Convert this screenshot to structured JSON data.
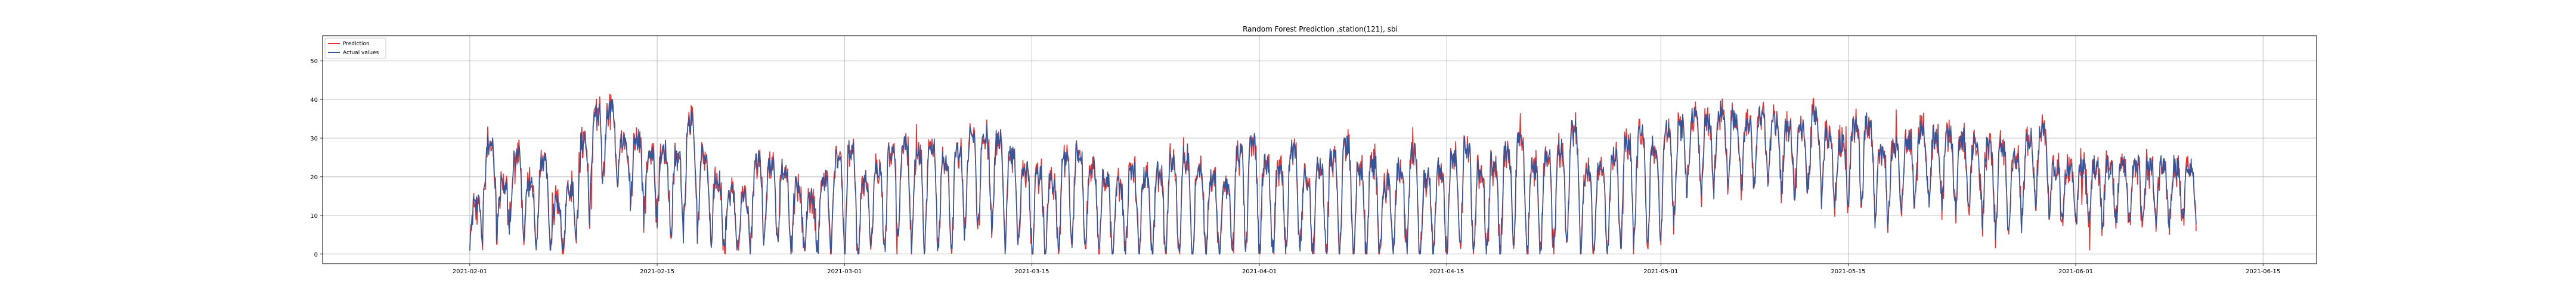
{
  "chart_data": {
    "type": "line",
    "title": "Random Forest Prediction ,station(121), sbi",
    "xlabel": "",
    "ylabel": "",
    "x_start": "2021-02-01",
    "x_end": "2021-06-10",
    "xlim": [
      "2021-01-21",
      "2021-06-19"
    ],
    "ylim": [
      -2.5,
      56.5
    ],
    "x_ticks": [
      "2021-02-01",
      "2021-02-15",
      "2021-03-01",
      "2021-03-15",
      "2021-04-01",
      "2021-04-15",
      "2021-05-01",
      "2021-05-15",
      "2021-06-01",
      "2021-06-15"
    ],
    "y_ticks": [
      0,
      10,
      20,
      30,
      40,
      50
    ],
    "grid": true,
    "legend_position": "top-left",
    "series": [
      {
        "name": "Prediction",
        "color": "#e8312f",
        "daily_mean": [
          10,
          24,
          14,
          20,
          13,
          18,
          9,
          12,
          22,
          30,
          33,
          26,
          24,
          20,
          21,
          18,
          27,
          20,
          14,
          11,
          10,
          18,
          16,
          15,
          12,
          10,
          14,
          17,
          18,
          13,
          16,
          19,
          21,
          18,
          20,
          17,
          19,
          22,
          24,
          21,
          18,
          16,
          14,
          13,
          17,
          19,
          16,
          14,
          12,
          15,
          13,
          14,
          16,
          17,
          15,
          13,
          12,
          18,
          20,
          16,
          14,
          19,
          13,
          15,
          17,
          20,
          14,
          16,
          12,
          15,
          18,
          13,
          15,
          17,
          19,
          14,
          16,
          18,
          21,
          15,
          17,
          19,
          23,
          14,
          16,
          18,
          21,
          22,
          20,
          24,
          26,
          30,
          28,
          32,
          30,
          28,
          31,
          29,
          27,
          26,
          30,
          25,
          24,
          27,
          28,
          20,
          22,
          24,
          26,
          25,
          25,
          24,
          23,
          21,
          20,
          19,
          24,
          26,
          18
        ],
        "daily_amp": [
          6,
          8,
          7,
          9,
          8,
          10,
          6,
          8,
          12,
          10,
          8,
          7,
          9,
          9,
          10,
          12,
          14,
          12,
          10,
          8,
          8,
          12,
          10,
          11,
          9,
          8,
          10,
          13,
          14,
          11,
          12,
          14,
          13,
          14,
          15,
          12,
          14,
          14,
          13,
          14,
          13,
          11,
          11,
          10,
          13,
          14,
          12,
          11,
          10,
          12,
          11,
          12,
          13,
          14,
          12,
          11,
          10,
          14,
          15,
          13,
          12,
          14,
          11,
          12,
          14,
          15,
          12,
          13,
          10,
          12,
          14,
          11,
          12,
          13,
          15,
          12,
          13,
          14,
          15,
          12,
          14,
          15,
          15,
          12,
          13,
          14,
          15,
          15,
          14,
          14,
          12,
          10,
          10,
          9,
          9,
          10,
          9,
          9,
          10,
          10,
          10,
          10,
          9,
          10,
          11,
          11,
          10,
          10,
          9,
          9,
          10,
          10,
          9,
          11,
          12,
          10,
          10,
          10,
          8
        ]
      },
      {
        "name": "Actual values",
        "color": "#34559a"
      }
    ]
  }
}
